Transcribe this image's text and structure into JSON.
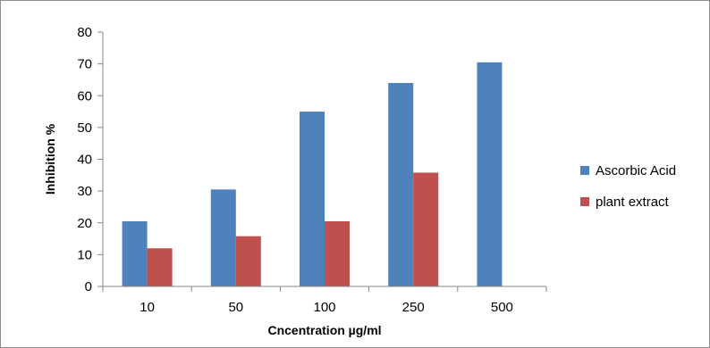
{
  "chart_data": {
    "type": "bar",
    "categories": [
      "10",
      "50",
      "100",
      "250",
      "500"
    ],
    "series": [
      {
        "name": "Ascorbic Acid",
        "values": [
          20.5,
          30.5,
          55,
          64,
          70.5
        ],
        "color": "#4f81bd"
      },
      {
        "name": "plant extract",
        "values": [
          12,
          15.8,
          20.5,
          35.8,
          null
        ],
        "color": "#c0504d"
      }
    ],
    "xlabel": "Cncentration µg/ml",
    "ylabel": "Inhibition %",
    "ylim": [
      0,
      80
    ],
    "yticks": [
      "0",
      "10",
      "20",
      "30",
      "40",
      "50",
      "60",
      "70",
      "80"
    ],
    "grid": false,
    "legend_position": "right"
  }
}
